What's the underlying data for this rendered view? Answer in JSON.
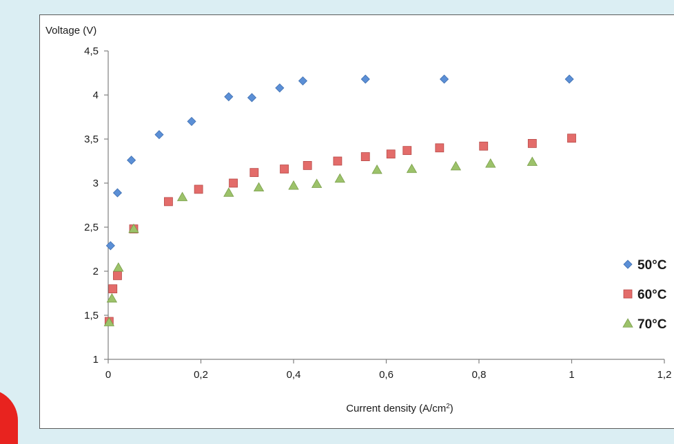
{
  "chart_data": {
    "type": "scatter",
    "title": "",
    "xlabel": "Current density (A/cm²)",
    "xlabel_main": "Current density (A/cm",
    "xlabel_sup": "2",
    "xlabel_end": ")",
    "ylabel": "Voltage (V)",
    "xlim": [
      0,
      1.2
    ],
    "ylim": [
      1,
      4.5
    ],
    "x_ticks": [
      {
        "value": 0,
        "label": "0"
      },
      {
        "value": 0.2,
        "label": "0,2"
      },
      {
        "value": 0.4,
        "label": "0,4"
      },
      {
        "value": 0.6,
        "label": "0,6"
      },
      {
        "value": 0.8,
        "label": "0,8"
      },
      {
        "value": 1.0,
        "label": "1"
      },
      {
        "value": 1.2,
        "label": "1,2"
      }
    ],
    "y_ticks": [
      {
        "value": 1,
        "label": "1"
      },
      {
        "value": 1.5,
        "label": "1,5"
      },
      {
        "value": 2,
        "label": "2"
      },
      {
        "value": 2.5,
        "label": "2,5"
      },
      {
        "value": 3,
        "label": "3"
      },
      {
        "value": 3.5,
        "label": "3,5"
      },
      {
        "value": 4,
        "label": "4"
      },
      {
        "value": 4.5,
        "label": "4,5"
      }
    ],
    "grid": false,
    "legend_position": "right",
    "series": [
      {
        "name": "50°C",
        "marker": "diamond",
        "color": "#5b8fd6",
        "points": [
          [
            0.005,
            2.29
          ],
          [
            0.02,
            2.89
          ],
          [
            0.05,
            3.26
          ],
          [
            0.11,
            3.55
          ],
          [
            0.18,
            3.7
          ],
          [
            0.26,
            3.98
          ],
          [
            0.31,
            3.97
          ],
          [
            0.37,
            4.08
          ],
          [
            0.42,
            4.16
          ],
          [
            0.555,
            4.18
          ],
          [
            0.725,
            4.18
          ],
          [
            0.995,
            4.18
          ]
        ]
      },
      {
        "name": "60°C",
        "marker": "square",
        "color": "#e36c6a",
        "points": [
          [
            0.002,
            1.43
          ],
          [
            0.01,
            1.8
          ],
          [
            0.02,
            1.95
          ],
          [
            0.055,
            2.48
          ],
          [
            0.13,
            2.79
          ],
          [
            0.195,
            2.93
          ],
          [
            0.27,
            3.0
          ],
          [
            0.315,
            3.12
          ],
          [
            0.38,
            3.16
          ],
          [
            0.43,
            3.2
          ],
          [
            0.495,
            3.25
          ],
          [
            0.555,
            3.3
          ],
          [
            0.61,
            3.33
          ],
          [
            0.645,
            3.37
          ],
          [
            0.715,
            3.4
          ],
          [
            0.81,
            3.42
          ],
          [
            0.915,
            3.45
          ],
          [
            1.0,
            3.51
          ]
        ]
      },
      {
        "name": "70°C",
        "marker": "triangle",
        "color": "#9cc26a",
        "points": [
          [
            0.002,
            1.42
          ],
          [
            0.008,
            1.69
          ],
          [
            0.022,
            2.04
          ],
          [
            0.055,
            2.48
          ],
          [
            0.16,
            2.84
          ],
          [
            0.26,
            2.89
          ],
          [
            0.325,
            2.95
          ],
          [
            0.4,
            2.97
          ],
          [
            0.45,
            2.99
          ],
          [
            0.5,
            3.05
          ],
          [
            0.58,
            3.15
          ],
          [
            0.655,
            3.16
          ],
          [
            0.75,
            3.19
          ],
          [
            0.825,
            3.22
          ],
          [
            0.915,
            3.24
          ]
        ]
      }
    ]
  }
}
